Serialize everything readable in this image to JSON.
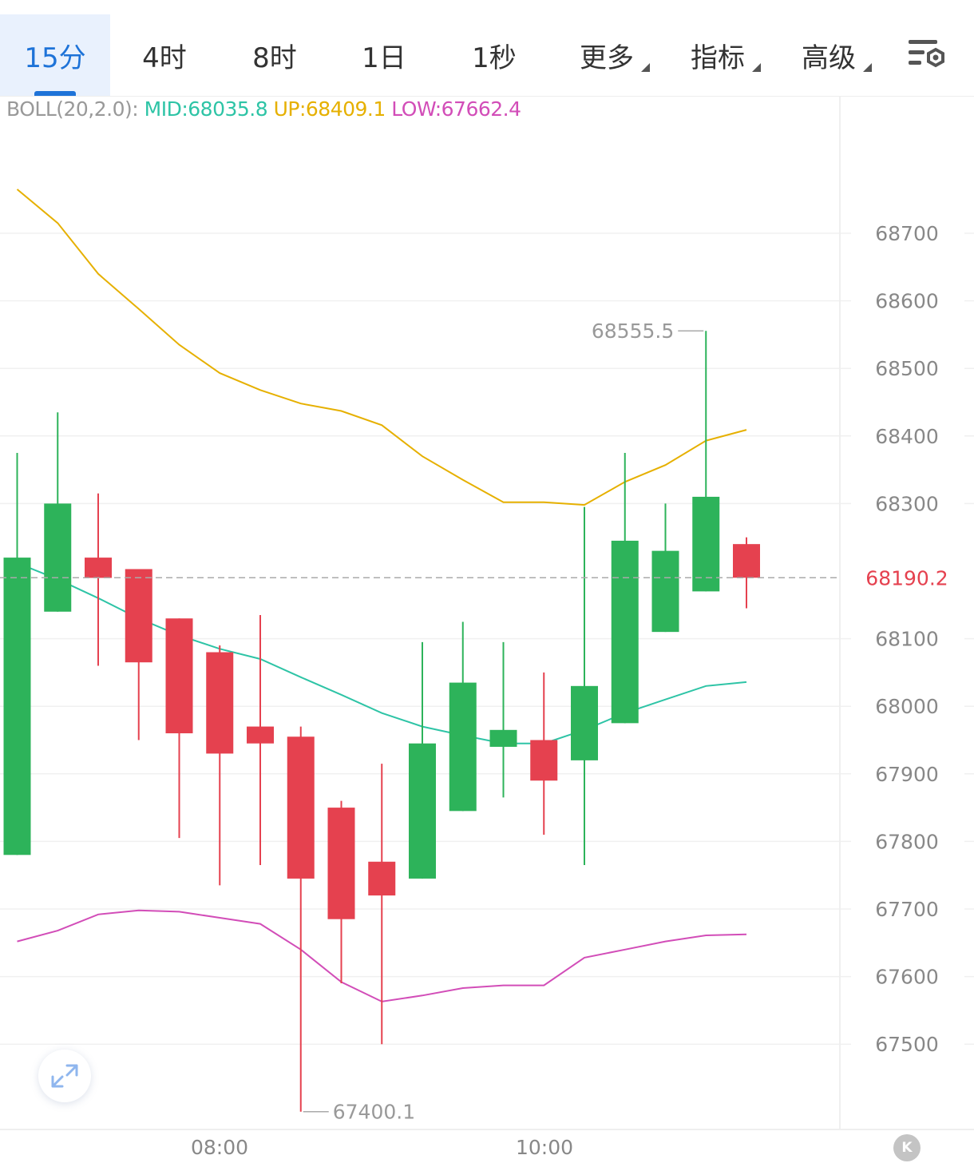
{
  "toolbar": {
    "tabs": [
      {
        "label": "15分",
        "active": true
      },
      {
        "label": "4时"
      },
      {
        "label": "8时"
      },
      {
        "label": "1日"
      },
      {
        "label": "1秒"
      },
      {
        "label": "更多",
        "dropdown": true
      },
      {
        "label": "指标",
        "dropdown": true
      },
      {
        "label": "高级",
        "dropdown": true
      }
    ],
    "settings_icon": "chart-settings-icon"
  },
  "legend": {
    "prefix": "BOLL(20,2.0):",
    "mid": "MID:68035.8",
    "up": "UP:68409.1",
    "low": "LOW:67662.4"
  },
  "colors": {
    "up_candle": "#2db35a",
    "down_candle": "#e5414f",
    "mid": "#2ec4a6",
    "up": "#e6b000",
    "low": "#d24db8",
    "active_tab": "#1e73d8",
    "current_price": "#e5414f"
  },
  "k_badge": "K",
  "chart_data": {
    "type": "candlestick",
    "title": "",
    "indicator": "BOLL(20,2.0)",
    "ylim": [
      67400,
      68800
    ],
    "y_ticks": [
      68700,
      68600,
      68500,
      68400,
      68300,
      68100,
      68000,
      67900,
      67800,
      67700,
      67600,
      67500
    ],
    "x_ticks": [
      "08:00",
      "10:00"
    ],
    "current_price": 68190.2,
    "annotations": {
      "high": "68555.5",
      "low": "67400.1"
    },
    "candles": [
      {
        "open": 67780,
        "high": 68375,
        "low": 67780,
        "close": 68220
      },
      {
        "open": 68140,
        "high": 68435,
        "low": 68140,
        "close": 68300
      },
      {
        "open": 68220,
        "high": 68315,
        "low": 68060,
        "close": 68190
      },
      {
        "open": 68203,
        "high": 68203,
        "low": 67950,
        "close": 68065
      },
      {
        "open": 68130,
        "high": 68130,
        "low": 67805,
        "close": 67960
      },
      {
        "open": 68080,
        "high": 68090,
        "low": 67735,
        "close": 67930
      },
      {
        "open": 67970,
        "high": 68135,
        "low": 67765,
        "close": 67945
      },
      {
        "open": 67955,
        "high": 67970,
        "low": 67400.1,
        "close": 67745
      },
      {
        "open": 67850,
        "high": 67860,
        "low": 67590,
        "close": 67685
      },
      {
        "open": 67770,
        "high": 67915,
        "low": 67500,
        "close": 67720
      },
      {
        "open": 67745,
        "high": 68095,
        "low": 67745,
        "close": 67945
      },
      {
        "open": 67845,
        "high": 68125,
        "low": 67845,
        "close": 68035
      },
      {
        "open": 67940,
        "high": 68095,
        "low": 67865,
        "close": 67965
      },
      {
        "open": 67950,
        "high": 68050,
        "low": 67810,
        "close": 67890
      },
      {
        "open": 67920,
        "high": 68295,
        "low": 67765,
        "close": 68030
      },
      {
        "open": 67975,
        "high": 68375,
        "low": 67975,
        "close": 68245
      },
      {
        "open": 68110,
        "high": 68300,
        "low": 68110,
        "close": 68230
      },
      {
        "open": 68170,
        "high": 68555.5,
        "low": 68170,
        "close": 68310
      },
      {
        "open": 68240,
        "high": 68250,
        "low": 68145,
        "close": 68190.2
      }
    ],
    "series": [
      {
        "name": "UP",
        "values": [
          68765,
          68715,
          68640,
          68588,
          68535,
          68493,
          68468,
          68448,
          68437,
          68416,
          68370,
          68335,
          68302,
          68302,
          68298,
          68332,
          68357,
          68393,
          68409.1
        ]
      },
      {
        "name": "MID",
        "values": [
          68212,
          68188,
          68160,
          68130,
          68105,
          68085,
          68070,
          68043,
          68017,
          67990,
          67970,
          67957,
          67945,
          67945,
          67965,
          67990,
          68010,
          68030,
          68035.8
        ]
      },
      {
        "name": "LOW",
        "values": [
          67652,
          67668,
          67692,
          67698,
          67696,
          67687,
          67678,
          67640,
          67592,
          67563,
          67572,
          67583,
          67587,
          67587,
          67628,
          67640,
          67652,
          67661,
          67662.4
        ]
      }
    ]
  }
}
